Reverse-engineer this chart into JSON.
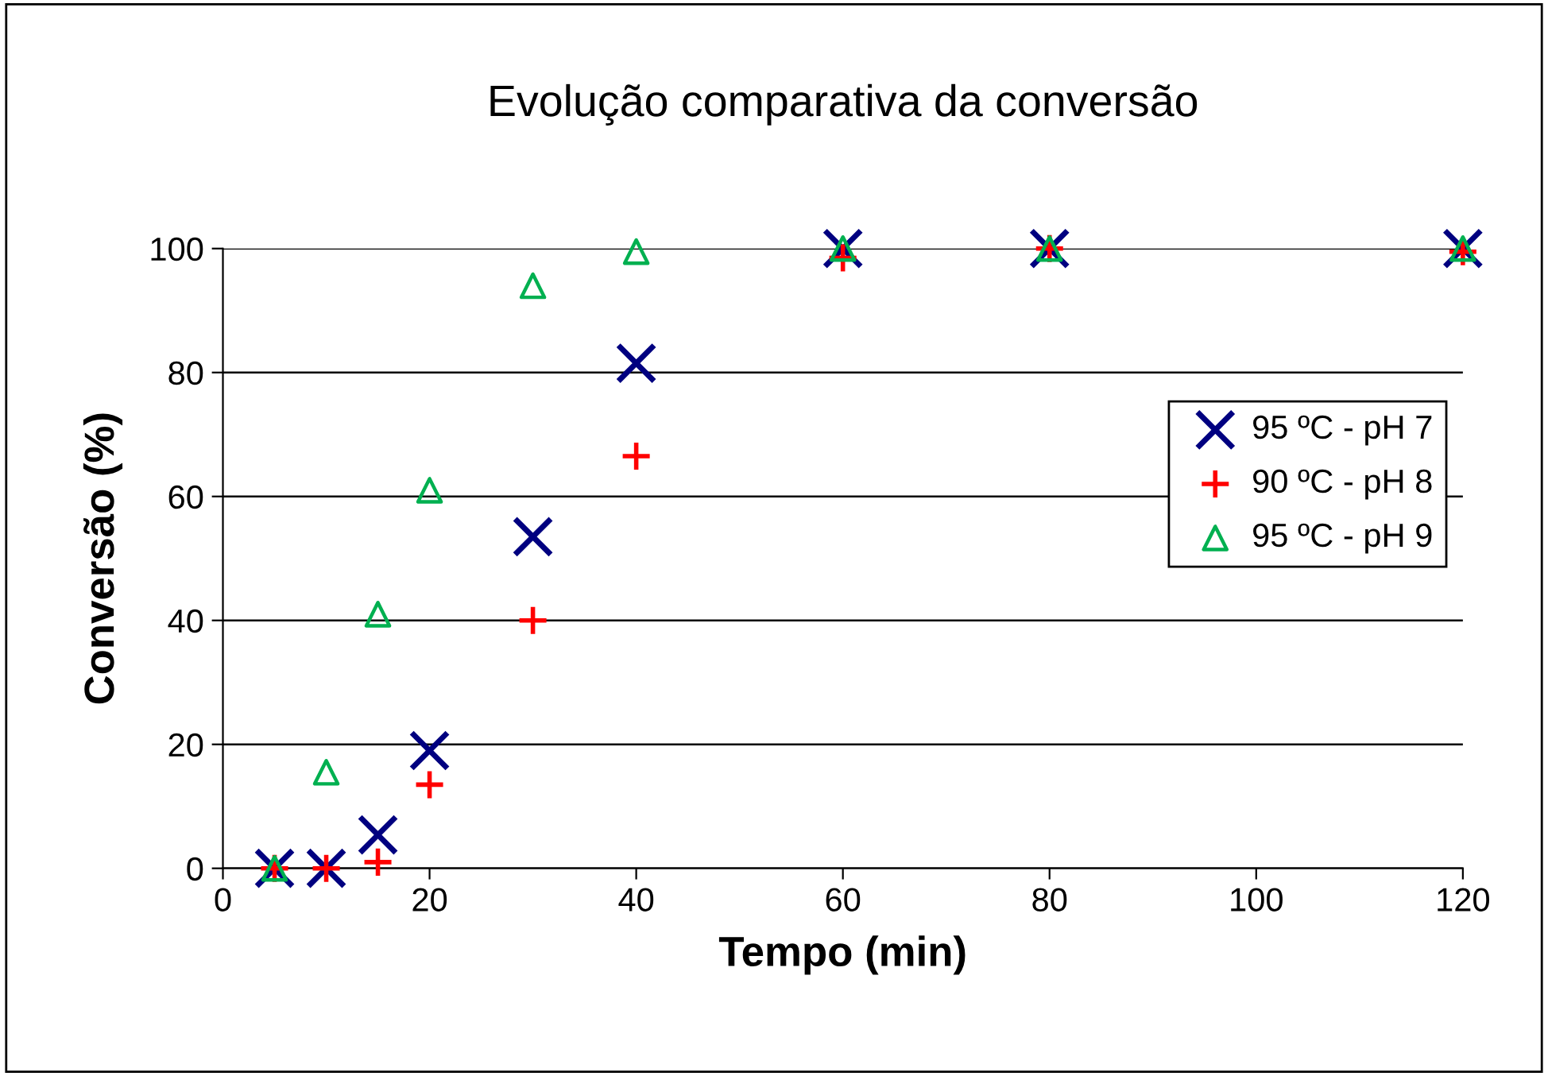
{
  "chart_data": {
    "type": "scatter",
    "title": "Evolução comparativa da conversão",
    "xlabel": "Tempo (min)",
    "ylabel": "Conversão (%)",
    "series": [
      {
        "name": "95 ºC - pH 7",
        "color": "#000080",
        "marker": "cross",
        "x": [
          5,
          10,
          15,
          20,
          30,
          40,
          60,
          80,
          120
        ],
        "values": [
          0,
          0,
          5.4,
          19,
          53.5,
          81.5,
          100,
          100,
          100
        ]
      },
      {
        "name": "90 ºC - pH 8",
        "color": "#ff0000",
        "marker": "plus",
        "x": [
          5,
          10,
          15,
          20,
          30,
          40,
          60,
          80,
          120
        ],
        "values": [
          0,
          0,
          1,
          13.5,
          40,
          66.5,
          98.5,
          100,
          99.5
        ]
      },
      {
        "name": "95 ºC - pH 9",
        "color": "#00b050",
        "marker": "triangle",
        "x": [
          5,
          10,
          15,
          20,
          30,
          40,
          60,
          80,
          120
        ],
        "values": [
          0,
          15.5,
          41,
          61,
          94,
          99.5,
          100,
          100,
          100
        ]
      }
    ],
    "xlim": [
      0,
      120
    ],
    "xticks": [
      0,
      20,
      40,
      60,
      80,
      100,
      120
    ],
    "ylim": [
      0,
      100
    ],
    "yticks": [
      0,
      20,
      40,
      60,
      80,
      100
    ],
    "grid": "y",
    "legend": "right"
  }
}
